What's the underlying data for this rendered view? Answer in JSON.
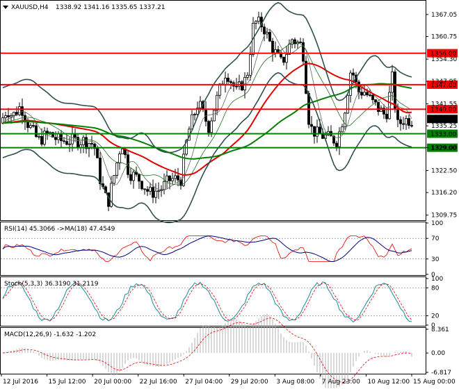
{
  "header": {
    "symbol_tf": "XAUUSD,H4",
    "ohlc": "1338.92 1341.16 1335.65 1337.21"
  },
  "panels": {
    "rsi_title": "RSI(14) 45.3066  ->MA(18) 47.4549",
    "stoch_title": "Stoch(5,3,3) 36.3190 31.2119",
    "macd_title": "MACD(12,26,9) -1.632 -1.202"
  },
  "colors": {
    "resistance": "#ff0000",
    "support": "#008000",
    "candle": "#000000",
    "bollinger": "#2f4f4f",
    "ma_red": "#e00000",
    "ma_green": "#008000",
    "price_tag": "#000000"
  },
  "chart_data": {
    "type": "candlestick",
    "price_axis": {
      "ticks": [
        "1367.05",
        "1360.75",
        "1354.30",
        "1347.95",
        "1341.55",
        "1335.25",
        "1329.00",
        "1322.50",
        "1316.20",
        "1309.75"
      ],
      "range": [
        1308.5,
        1370
      ]
    },
    "time_axis": {
      "labels": [
        "12 Jul 2016",
        "15 Jul 12:00",
        "20 Jul 00:00",
        "22 Jul 16:00",
        "27 Jul 04:00",
        "29 Jul 20:00",
        "3 Aug 08:00",
        "7 Aug 23:00",
        "10 Aug 12:00",
        "15 Aug 00:00"
      ]
    },
    "levels": [
      {
        "label": "1356.00",
        "value": 1356.0,
        "kind": "resistance"
      },
      {
        "label": "1347.00",
        "value": 1347.0,
        "kind": "resistance"
      },
      {
        "label": "1340.00",
        "value": 1340.0,
        "kind": "resistance"
      },
      {
        "label": "1333.00",
        "value": 1333.0,
        "kind": "support"
      },
      {
        "label": "1329.00",
        "value": 1329.0,
        "kind": "support"
      }
    ],
    "current_price": "1337.21",
    "rsi": {
      "ticks": [
        "100",
        "70",
        "30",
        "0"
      ],
      "value": 45.3066,
      "ma": 47.4549
    },
    "stoch": {
      "ticks": [
        "100",
        "80",
        "20",
        "0"
      ],
      "k": 36.319,
      "d": 31.2119
    },
    "macd": {
      "ticks": [
        "8.361",
        "0.00",
        "-6.817"
      ],
      "main": -1.632,
      "signal": -1.202
    }
  }
}
